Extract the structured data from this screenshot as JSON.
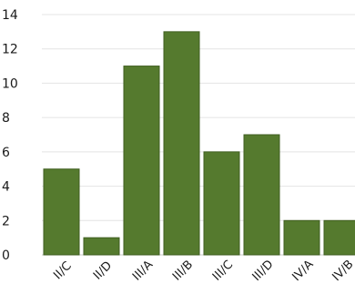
{
  "chart_data": {
    "type": "bar",
    "categories": [
      "II/C",
      "II/D",
      "III/A",
      "III/B",
      "III/C",
      "III/D",
      "IV/A",
      "IV/B"
    ],
    "values": [
      5,
      1,
      11,
      13,
      6,
      7,
      2,
      2
    ],
    "ylim": [
      0,
      14
    ],
    "yticks": [
      0,
      2,
      4,
      6,
      8,
      10,
      12,
      14
    ],
    "grid": true,
    "legend": "none",
    "title": "",
    "xlabel": "",
    "ylabel": "",
    "colors": {
      "bar": "#557a2e",
      "bar_edge": "#3f5e20"
    }
  }
}
